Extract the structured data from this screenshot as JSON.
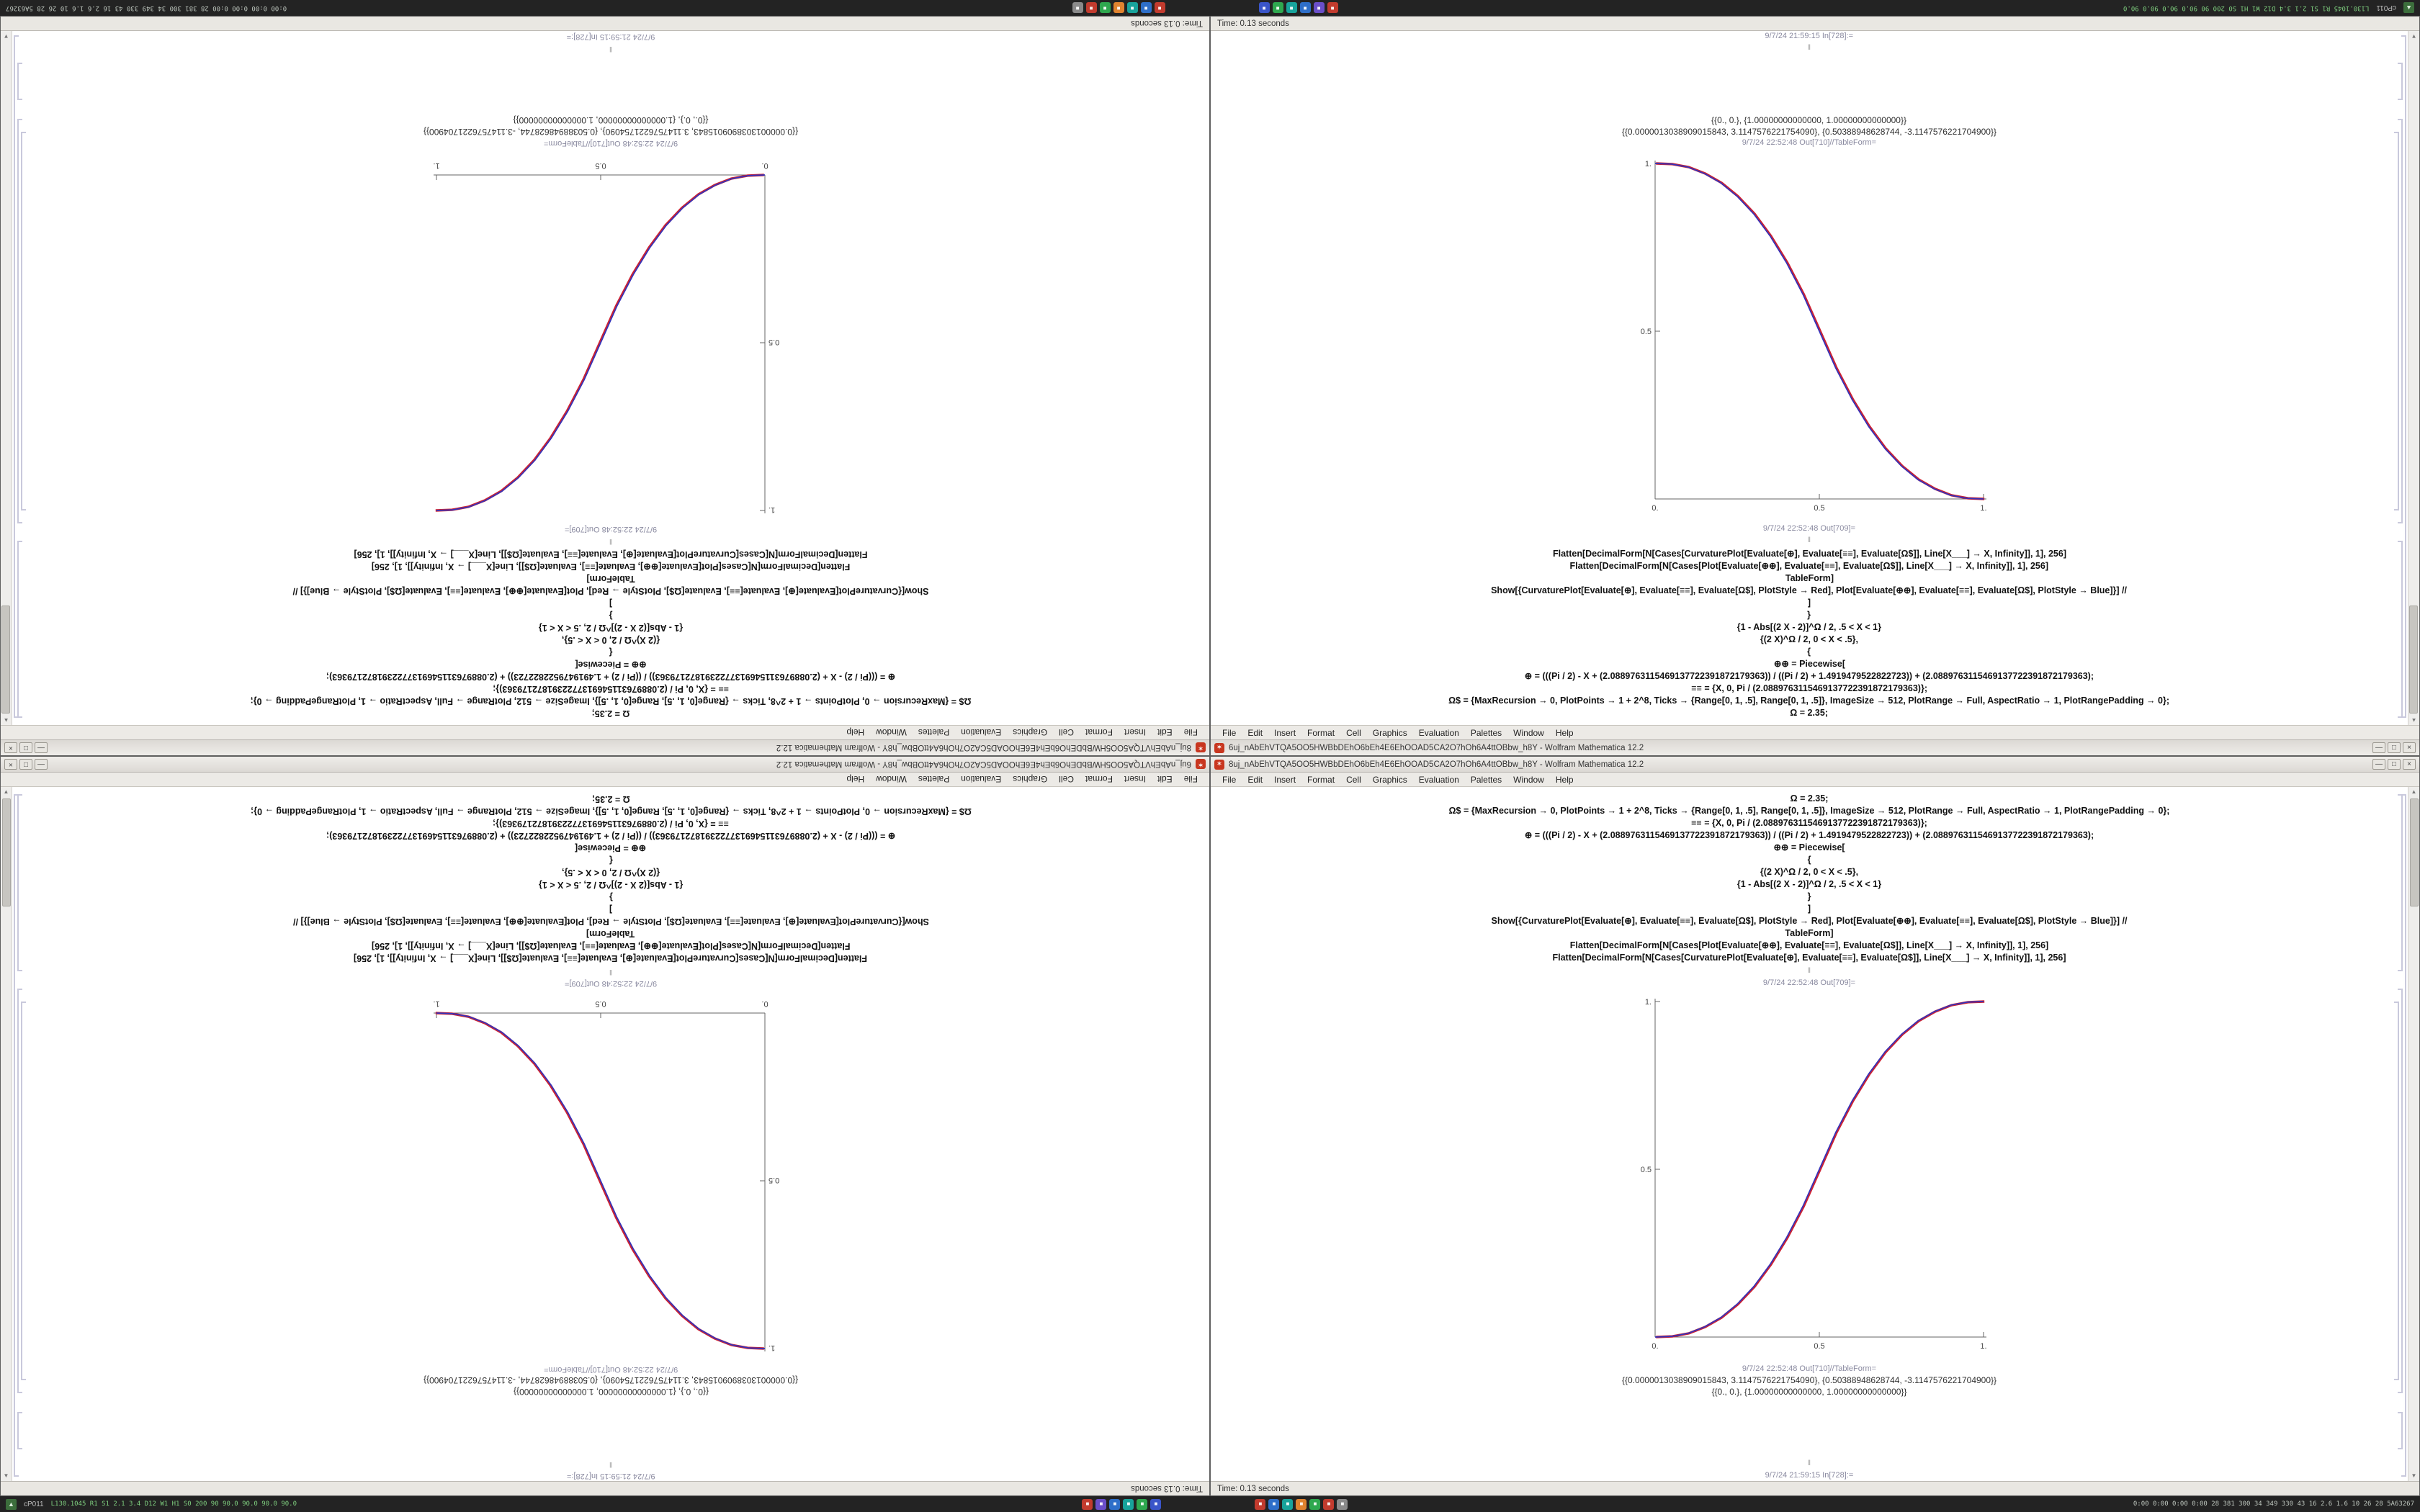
{
  "app": {
    "title_left": "6uj_nAbEhVTQA5OO5HWBbDEhO6bEh4E6EhOOAD5CA2O7hOh6A4ttOBbw_h8Y - Wolfram Mathematica 12.2",
    "title_right": "8uj_nAbEhVTQA5OO5HWBbDEhO6bEh4E6EhOOAD5CA2O7hOh6A4ttOBbw_h8Y - Wolfram Mathematica 12.2",
    "menu": [
      "File",
      "Edit",
      "Insert",
      "Format",
      "Cell",
      "Graphics",
      "Evaluation",
      "Palettes",
      "Window",
      "Help"
    ],
    "window_controls": {
      "minimize": "—",
      "maximize": "□",
      "close": "×"
    },
    "app_icon_glyph": "✶",
    "status_time": "Time: 0.13 seconds"
  },
  "notebook": {
    "cells": [
      {
        "type": "code",
        "text": "Ω = 2.35;"
      },
      {
        "type": "code",
        "text": "Ω$ = {MaxRecursion → 0, PlotPoints → 1 + 2^8, Ticks → {Range[0, 1, .5], Range[0, 1, .5]}, ImageSize → 512, PlotRange → Full, AspectRatio → 1, PlotRangePadding → 0};"
      },
      {
        "type": "code",
        "text": "≡≡ = {X, 0, Pi / (2.0889763115469137722391872179363)};"
      },
      {
        "type": "code",
        "text": "⊕ = (((Pi / 2) - X + (2.0889763115469137722391872179363)) / ((Pi / 2) + 1.4919479522822723)) + (2.0889763115469137722391872179363);"
      },
      {
        "type": "code",
        "text": "⊕⊕ = Piecewise["
      },
      {
        "type": "code",
        "text": "{"
      },
      {
        "type": "code",
        "text": "{(2 X)^Ω / 2, 0 < X < .5},"
      },
      {
        "type": "code",
        "text": "{1 - Abs[(2 X - 2)]^Ω / 2, .5 < X < 1}"
      },
      {
        "type": "code",
        "text": "}"
      },
      {
        "type": "code",
        "text": "]"
      },
      {
        "type": "code",
        "text": "Show[{CurvaturePlot[Evaluate[⊕], Evaluate[≡≡], Evaluate[Ω$], PlotStyle → Red], Plot[Evaluate[⊕⊕], Evaluate[≡≡], Evaluate[Ω$], PlotStyle → Blue]}] //"
      },
      {
        "type": "code",
        "text": "TableForm]"
      },
      {
        "type": "code",
        "text": "Flatten[DecimalForm[N[Cases[Plot[Evaluate[⊕⊕], Evaluate[≡≡], Evaluate[Ω$]], Line[X___] → X, Infinity]], 1], 256]"
      },
      {
        "type": "code",
        "text": "Flatten[DecimalForm[N[Cases[CurvaturePlot[Evaluate[⊕], Evaluate[≡≡], Evaluate[Ω$]], Line[X___] → X, Infinity]], 1], 256]"
      },
      {
        "type": "sep",
        "text": "‖"
      },
      {
        "type": "label",
        "text": "9/7/24 22:52:48 Out[709]="
      },
      {
        "type": "plot"
      },
      {
        "type": "label",
        "text": "9/7/24 22:52:48 Out[710]//TableForm="
      },
      {
        "type": "output",
        "text": "{{0.0000013038909015843, 3.1147576221754090}, {0.50388948628744, -3.1147576221704900}}"
      },
      {
        "type": "output",
        "text": "{{0., 0.}, {1.00000000000000, 1.00000000000000}}"
      },
      {
        "type": "spacer",
        "text": ""
      },
      {
        "type": "sep",
        "text": "‖"
      },
      {
        "type": "label",
        "text": "9/7/24 21:59:15 In[728]:="
      }
    ]
  },
  "chart_data": [
    {
      "id": "up",
      "type": "line",
      "title": "Out[709]= piecewise power sigmoid, increasing",
      "xlabel": "",
      "ylabel": "",
      "xlim": [
        0,
        1
      ],
      "ylim": [
        0,
        1
      ],
      "x_ticks": [
        0,
        0.5,
        1
      ],
      "x_tick_labels": [
        "0.",
        "0.5",
        "1."
      ],
      "y_ticks": [
        0.5,
        1
      ],
      "y_tick_labels": [
        "0.5",
        "1."
      ],
      "grid": false,
      "legend": "none",
      "x": [
        0,
        0.05,
        0.1,
        0.15,
        0.2,
        0.25,
        0.3,
        0.35,
        0.4,
        0.45,
        0.5,
        0.55,
        0.6,
        0.65,
        0.7,
        0.75,
        0.8,
        0.85,
        0.9,
        0.95,
        1
      ],
      "y": [
        0,
        0.002,
        0.011,
        0.03,
        0.058,
        0.098,
        0.15,
        0.216,
        0.296,
        0.39,
        0.5,
        0.61,
        0.704,
        0.784,
        0.85,
        0.902,
        0.942,
        0.97,
        0.989,
        0.998,
        1
      ],
      "series": [
        {
          "name": "CurvaturePlot (PlotStyle → Red)",
          "color": "#cc2233"
        },
        {
          "name": "Plot (PlotStyle → Blue)",
          "color": "#3333bb"
        }
      ]
    },
    {
      "id": "down",
      "type": "line",
      "title": "Out[709]= piecewise power sigmoid, decreasing",
      "xlabel": "",
      "ylabel": "",
      "xlim": [
        0,
        1
      ],
      "ylim": [
        0,
        1
      ],
      "x_ticks": [
        0,
        0.5,
        1
      ],
      "x_tick_labels": [
        "0.",
        "0.5",
        "1."
      ],
      "y_ticks": [
        0.5,
        1
      ],
      "y_tick_labels": [
        "0.5",
        "1."
      ],
      "grid": false,
      "legend": "none",
      "x": [
        0,
        0.05,
        0.1,
        0.15,
        0.2,
        0.25,
        0.3,
        0.35,
        0.4,
        0.45,
        0.5,
        0.55,
        0.6,
        0.65,
        0.7,
        0.75,
        0.8,
        0.85,
        0.9,
        0.95,
        1
      ],
      "y": [
        1,
        0.998,
        0.989,
        0.97,
        0.942,
        0.902,
        0.85,
        0.784,
        0.704,
        0.61,
        0.5,
        0.39,
        0.296,
        0.216,
        0.15,
        0.098,
        0.058,
        0.03,
        0.011,
        0.002,
        0
      ],
      "series": [
        {
          "name": "CurvaturePlot (PlotStyle → Red)",
          "color": "#cc2233"
        },
        {
          "name": "Plot (PlotStyle → Blue)",
          "color": "#3333bb"
        }
      ]
    }
  ],
  "taskbar": {
    "start_glyph": "▲",
    "left_label": "cP011",
    "left_stats": "L130.1045  R1 S1 2.1 3.4 D12 W1 H1 S0 200 90  90.0 90.0 90.0 90.0",
    "right_stats": "0:00 0:00 0:00 0:00  28 381 300 34 349 330 43 16  2.6 1.6 10 26 28  5A63267",
    "tray_groups": [
      [
        {
          "name": "tray-app-red",
          "color": "#c23b2e"
        },
        {
          "name": "tray-app-violet",
          "color": "#6a4fc9"
        },
        {
          "name": "tray-app-blue",
          "color": "#2e6fc9"
        },
        {
          "name": "tray-app-teal",
          "color": "#18a39b"
        },
        {
          "name": "tray-app-green",
          "color": "#2fa84f"
        },
        {
          "name": "tray-app-indigo",
          "color": "#3a55c9"
        }
      ],
      [
        {
          "name": "tray-app-red-2",
          "color": "#c23b2e"
        },
        {
          "name": "tray-app-blue-2",
          "color": "#2e6fc9"
        },
        {
          "name": "tray-app-teal-2",
          "color": "#18a39b"
        },
        {
          "name": "tray-app-orange",
          "color": "#e0832f"
        },
        {
          "name": "tray-app-green-2",
          "color": "#2fa84f"
        },
        {
          "name": "tray-app-red-3",
          "color": "#c23b2e"
        },
        {
          "name": "tray-app-gray",
          "color": "#8a8a8a"
        }
      ]
    ]
  }
}
